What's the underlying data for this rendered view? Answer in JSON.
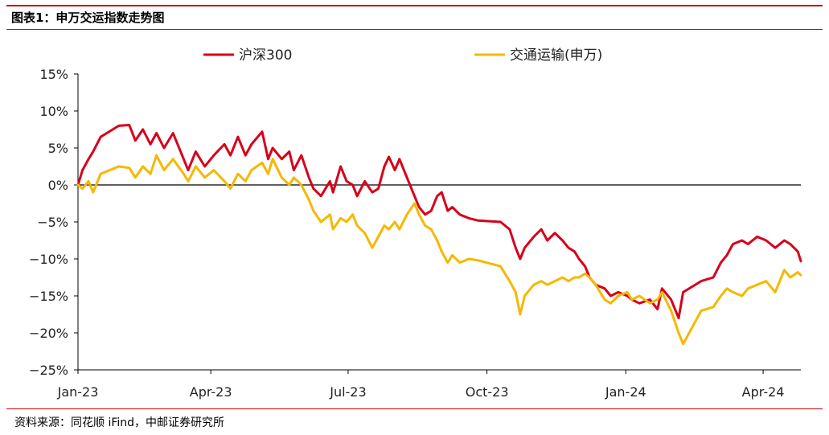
{
  "figure": {
    "title": "图表1：申万交运指数走势图",
    "source": "资料来源：同花顺 iFind，中邮证券研究所"
  },
  "colors": {
    "series_1": "#d7001b",
    "series_2": "#f5b800",
    "zero_line": "#000000",
    "rule": "#c00000",
    "axis": "#000000",
    "text": "#222222"
  },
  "chart_data": {
    "type": "line",
    "x_unit": "date",
    "y_unit": "percent",
    "xlim": [
      "2023-01-03",
      "2024-04-26"
    ],
    "ylim": [
      -25,
      15
    ],
    "yticks": [
      15,
      10,
      5,
      0,
      -5,
      -10,
      -15,
      -20,
      -25
    ],
    "ytick_labels": [
      "15%",
      "10%",
      "5%",
      "0%",
      "−5%",
      "−10%",
      "−15%",
      "−20%",
      "−25%"
    ],
    "xticks": [
      {
        "date": "2023-01-03",
        "label": "Jan-23"
      },
      {
        "date": "2023-04-01",
        "label": "Apr-23"
      },
      {
        "date": "2023-07-01",
        "label": "Jul-23"
      },
      {
        "date": "2023-10-01",
        "label": "Oct-23"
      },
      {
        "date": "2024-01-01",
        "label": "Jan-24"
      },
      {
        "date": "2024-04-01",
        "label": "Apr-24"
      }
    ],
    "grid": false,
    "legend_position": "top-center",
    "series": [
      {
        "name": "沪深300",
        "color": "#d7001b",
        "points": [
          [
            "2023-01-03",
            0
          ],
          [
            "2023-01-06",
            2.0
          ],
          [
            "2023-01-10",
            3.5
          ],
          [
            "2023-01-13",
            4.5
          ],
          [
            "2023-01-18",
            6.5
          ],
          [
            "2023-01-30",
            8.0
          ],
          [
            "2023-02-06",
            8.1
          ],
          [
            "2023-02-10",
            6.0
          ],
          [
            "2023-02-15",
            7.5
          ],
          [
            "2023-02-20",
            5.5
          ],
          [
            "2023-02-24",
            7.0
          ],
          [
            "2023-03-01",
            5.0
          ],
          [
            "2023-03-07",
            7.0
          ],
          [
            "2023-03-14",
            3.5
          ],
          [
            "2023-03-17",
            2.0
          ],
          [
            "2023-03-22",
            4.5
          ],
          [
            "2023-03-28",
            2.5
          ],
          [
            "2023-04-03",
            4.0
          ],
          [
            "2023-04-10",
            5.5
          ],
          [
            "2023-04-14",
            4.0
          ],
          [
            "2023-04-19",
            6.5
          ],
          [
            "2023-04-24",
            4.0
          ],
          [
            "2023-04-28",
            5.5
          ],
          [
            "2023-05-05",
            7.2
          ],
          [
            "2023-05-09",
            3.5
          ],
          [
            "2023-05-12",
            5.0
          ],
          [
            "2023-05-18",
            3.5
          ],
          [
            "2023-05-23",
            4.5
          ],
          [
            "2023-05-26",
            2.0
          ],
          [
            "2023-05-31",
            4.0
          ],
          [
            "2023-06-05",
            1.0
          ],
          [
            "2023-06-08",
            -0.5
          ],
          [
            "2023-06-13",
            -1.5
          ],
          [
            "2023-06-19",
            0.5
          ],
          [
            "2023-06-21",
            -1.0
          ],
          [
            "2023-06-26",
            2.5
          ],
          [
            "2023-06-30",
            0.5
          ],
          [
            "2023-07-04",
            0.0
          ],
          [
            "2023-07-07",
            -1.5
          ],
          [
            "2023-07-12",
            0.5
          ],
          [
            "2023-07-17",
            -1.0
          ],
          [
            "2023-07-21",
            -0.5
          ],
          [
            "2023-07-25",
            2.5
          ],
          [
            "2023-07-28",
            3.8
          ],
          [
            "2023-08-01",
            2.0
          ],
          [
            "2023-08-04",
            3.5
          ],
          [
            "2023-08-09",
            1.0
          ],
          [
            "2023-08-14",
            -1.5
          ],
          [
            "2023-08-17",
            -3.0
          ],
          [
            "2023-08-21",
            -4.0
          ],
          [
            "2023-08-25",
            -3.5
          ],
          [
            "2023-08-29",
            -1.5
          ],
          [
            "2023-09-01",
            -1.0
          ],
          [
            "2023-09-05",
            -3.5
          ],
          [
            "2023-09-08",
            -3.0
          ],
          [
            "2023-09-13",
            -4.0
          ],
          [
            "2023-09-19",
            -4.5
          ],
          [
            "2023-09-25",
            -4.8
          ],
          [
            "2023-10-10",
            -5.0
          ],
          [
            "2023-10-16",
            -6.0
          ],
          [
            "2023-10-20",
            -8.5
          ],
          [
            "2023-10-23",
            -10.0
          ],
          [
            "2023-10-26",
            -8.5
          ],
          [
            "2023-11-01",
            -7.0
          ],
          [
            "2023-11-06",
            -6.0
          ],
          [
            "2023-11-10",
            -7.5
          ],
          [
            "2023-11-15",
            -6.5
          ],
          [
            "2023-11-20",
            -7.5
          ],
          [
            "2023-11-24",
            -8.5
          ],
          [
            "2023-11-28",
            -9.0
          ],
          [
            "2023-12-01",
            -10.0
          ],
          [
            "2023-12-05",
            -11.0
          ],
          [
            "2023-12-08",
            -12.5
          ],
          [
            "2023-12-12",
            -13.5
          ],
          [
            "2023-12-18",
            -14.0
          ],
          [
            "2023-12-22",
            -15.0
          ],
          [
            "2023-12-27",
            -14.5
          ],
          [
            "2024-01-02",
            -15.0
          ],
          [
            "2024-01-05",
            -15.5
          ],
          [
            "2024-01-10",
            -16.0
          ],
          [
            "2024-01-17",
            -15.5
          ],
          [
            "2024-01-22",
            -16.8
          ],
          [
            "2024-01-25",
            -14.0
          ],
          [
            "2024-01-31",
            -15.5
          ],
          [
            "2024-02-05",
            -18.0
          ],
          [
            "2024-02-08",
            -14.5
          ],
          [
            "2024-02-20",
            -13.0
          ],
          [
            "2024-02-28",
            -12.5
          ],
          [
            "2024-03-04",
            -10.5
          ],
          [
            "2024-03-08",
            -9.5
          ],
          [
            "2024-03-12",
            -8.0
          ],
          [
            "2024-03-18",
            -7.5
          ],
          [
            "2024-03-22",
            -8.0
          ],
          [
            "2024-03-28",
            -7.0
          ],
          [
            "2024-04-03",
            -7.5
          ],
          [
            "2024-04-09",
            -8.5
          ],
          [
            "2024-04-15",
            -7.5
          ],
          [
            "2024-04-19",
            -8.0
          ],
          [
            "2024-04-24",
            -9.0
          ],
          [
            "2024-04-26",
            -10.3
          ]
        ]
      },
      {
        "name": "交通运输(申万)",
        "color": "#f5b800",
        "points": [
          [
            "2023-01-03",
            0
          ],
          [
            "2023-01-06",
            -0.5
          ],
          [
            "2023-01-10",
            0.5
          ],
          [
            "2023-01-13",
            -1.0
          ],
          [
            "2023-01-18",
            1.5
          ],
          [
            "2023-01-30",
            2.5
          ],
          [
            "2023-02-06",
            2.3
          ],
          [
            "2023-02-10",
            1.0
          ],
          [
            "2023-02-15",
            2.5
          ],
          [
            "2023-02-20",
            1.5
          ],
          [
            "2023-02-24",
            4.0
          ],
          [
            "2023-03-01",
            2.0
          ],
          [
            "2023-03-07",
            3.5
          ],
          [
            "2023-03-14",
            1.5
          ],
          [
            "2023-03-17",
            0.5
          ],
          [
            "2023-03-22",
            2.5
          ],
          [
            "2023-03-28",
            1.0
          ],
          [
            "2023-04-03",
            2.0
          ],
          [
            "2023-04-10",
            0.5
          ],
          [
            "2023-04-14",
            -0.5
          ],
          [
            "2023-04-19",
            1.5
          ],
          [
            "2023-04-24",
            0.5
          ],
          [
            "2023-04-28",
            2.0
          ],
          [
            "2023-05-05",
            3.0
          ],
          [
            "2023-05-09",
            1.5
          ],
          [
            "2023-05-12",
            3.5
          ],
          [
            "2023-05-18",
            1.0
          ],
          [
            "2023-05-23",
            0.0
          ],
          [
            "2023-05-26",
            1.0
          ],
          [
            "2023-05-31",
            0.0
          ],
          [
            "2023-06-05",
            -2.0
          ],
          [
            "2023-06-08",
            -3.5
          ],
          [
            "2023-06-13",
            -5.0
          ],
          [
            "2023-06-19",
            -4.0
          ],
          [
            "2023-06-21",
            -6.0
          ],
          [
            "2023-06-26",
            -4.5
          ],
          [
            "2023-06-30",
            -5.0
          ],
          [
            "2023-07-04",
            -4.0
          ],
          [
            "2023-07-07",
            -5.5
          ],
          [
            "2023-07-12",
            -6.5
          ],
          [
            "2023-07-17",
            -8.5
          ],
          [
            "2023-07-21",
            -7.0
          ],
          [
            "2023-07-25",
            -5.5
          ],
          [
            "2023-07-28",
            -6.0
          ],
          [
            "2023-08-01",
            -5.0
          ],
          [
            "2023-08-04",
            -6.0
          ],
          [
            "2023-08-09",
            -4.0
          ],
          [
            "2023-08-14",
            -2.5
          ],
          [
            "2023-08-17",
            -4.0
          ],
          [
            "2023-08-21",
            -5.5
          ],
          [
            "2023-08-25",
            -6.0
          ],
          [
            "2023-08-29",
            -7.5
          ],
          [
            "2023-09-01",
            -9.0
          ],
          [
            "2023-09-05",
            -10.5
          ],
          [
            "2023-09-08",
            -9.5
          ],
          [
            "2023-09-13",
            -10.5
          ],
          [
            "2023-09-19",
            -10.0
          ],
          [
            "2023-09-25",
            -10.2
          ],
          [
            "2023-10-10",
            -11.0
          ],
          [
            "2023-10-16",
            -13.0
          ],
          [
            "2023-10-20",
            -14.5
          ],
          [
            "2023-10-23",
            -17.5
          ],
          [
            "2023-10-26",
            -15.0
          ],
          [
            "2023-11-01",
            -13.5
          ],
          [
            "2023-11-06",
            -13.0
          ],
          [
            "2023-11-10",
            -13.5
          ],
          [
            "2023-11-15",
            -13.0
          ],
          [
            "2023-11-20",
            -12.5
          ],
          [
            "2023-11-24",
            -13.0
          ],
          [
            "2023-11-28",
            -12.5
          ],
          [
            "2023-12-01",
            -12.5
          ],
          [
            "2023-12-05",
            -12.0
          ],
          [
            "2023-12-08",
            -12.5
          ],
          [
            "2023-12-12",
            -13.5
          ],
          [
            "2023-12-18",
            -15.5
          ],
          [
            "2023-12-22",
            -16.0
          ],
          [
            "2023-12-27",
            -15.0
          ],
          [
            "2024-01-02",
            -14.5
          ],
          [
            "2024-01-05",
            -15.5
          ],
          [
            "2024-01-10",
            -15.0
          ],
          [
            "2024-01-17",
            -16.0
          ],
          [
            "2024-01-22",
            -15.5
          ],
          [
            "2024-01-25",
            -14.5
          ],
          [
            "2024-01-31",
            -17.0
          ],
          [
            "2024-02-05",
            -20.0
          ],
          [
            "2024-02-08",
            -21.5
          ],
          [
            "2024-02-20",
            -17.0
          ],
          [
            "2024-02-28",
            -16.5
          ],
          [
            "2024-03-04",
            -15.0
          ],
          [
            "2024-03-08",
            -14.0
          ],
          [
            "2024-03-12",
            -14.5
          ],
          [
            "2024-03-18",
            -15.0
          ],
          [
            "2024-03-22",
            -14.0
          ],
          [
            "2024-03-28",
            -13.5
          ],
          [
            "2024-04-03",
            -13.0
          ],
          [
            "2024-04-09",
            -14.5
          ],
          [
            "2024-04-15",
            -11.5
          ],
          [
            "2024-04-19",
            -12.5
          ],
          [
            "2024-04-24",
            -11.8
          ],
          [
            "2024-04-26",
            -12.2
          ]
        ]
      }
    ]
  }
}
